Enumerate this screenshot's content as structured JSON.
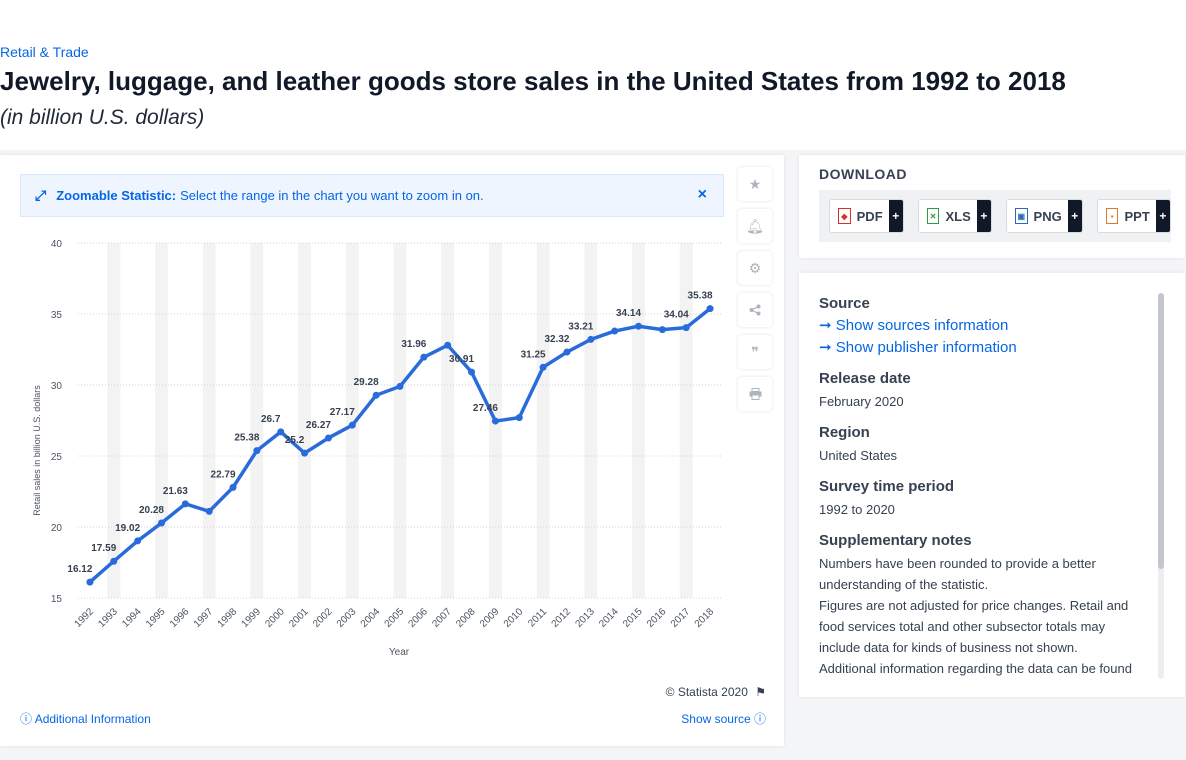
{
  "header": {
    "breadcrumb": "Retail & Trade",
    "title": "Jewelry, luggage, and leather goods store sales in the United States from 1992 to 2018",
    "subtitle": "(in billion U.S. dollars)"
  },
  "zoom_banner": {
    "icon": "expand-icon",
    "title": "Zoomable Statistic:",
    "text": "Select the range in the chart you want to zoom in on.",
    "close": "×"
  },
  "tools": [
    "star-icon",
    "bell-icon",
    "gear-icon",
    "share-icon",
    "quote-icon",
    "print-icon"
  ],
  "footer": {
    "copyright": "© Statista 2020",
    "additional_info": "Additional Information",
    "show_source": "Show source"
  },
  "download": {
    "title": "DOWNLOAD",
    "buttons": [
      {
        "label": "PDF",
        "color": "#d9302c"
      },
      {
        "label": "XLS",
        "color": "#2e9b48"
      },
      {
        "label": "PNG",
        "color": "#2b6cb0"
      },
      {
        "label": "PPT",
        "color": "#e0782b"
      }
    ],
    "plus": "+"
  },
  "info": {
    "source_heading": "Source",
    "show_sources": "Show sources information",
    "show_publisher": "Show publisher information",
    "release_heading": "Release date",
    "release_value": "February 2020",
    "region_heading": "Region",
    "region_value": "United States",
    "survey_heading": "Survey time period",
    "survey_value": "1992 to 2020",
    "notes_heading": "Supplementary notes",
    "notes_1": "Numbers have been rounded to provide a better understanding of the statistic.",
    "notes_2": "Figures are not adjusted for price changes. Retail and food services total and other subsector totals may include data for kinds of business not shown.",
    "notes_3": "Additional information regarding the data can be found"
  },
  "chart_data": {
    "type": "line",
    "xlabel": "Year",
    "ylabel": "Retail sales in billion U.S. dollars",
    "ylim": [
      15,
      40
    ],
    "yticks": [
      15,
      20,
      25,
      30,
      35,
      40
    ],
    "grid": true,
    "color": "#2a6bdb",
    "categories": [
      "1992",
      "1993",
      "1994",
      "1995",
      "1996",
      "1997",
      "1998",
      "1999",
      "2000",
      "2001",
      "2002",
      "2003",
      "2004",
      "2005",
      "2006",
      "2007",
      "2008",
      "2009",
      "2010",
      "2011",
      "2012",
      "2013",
      "2014",
      "2015",
      "2016",
      "2017",
      "2018"
    ],
    "values": [
      16.12,
      17.59,
      19.02,
      20.28,
      21.63,
      21.1,
      22.79,
      25.38,
      26.7,
      25.2,
      26.27,
      27.17,
      29.28,
      29.9,
      31.96,
      32.8,
      30.91,
      27.46,
      27.7,
      31.25,
      32.32,
      33.21,
      33.8,
      34.14,
      33.9,
      34.04,
      35.38
    ],
    "labels": [
      "16.12",
      "17.59",
      "19.02",
      "20.28",
      "21.63",
      "",
      "22.79",
      "25.38",
      "26.7",
      "25.2",
      "26.27",
      "27.17",
      "29.28",
      "",
      "31.96",
      "",
      "30.91",
      "27.46",
      "",
      "31.25",
      "32.32",
      "33.21",
      "",
      "34.14",
      "",
      "34.04",
      "35.38"
    ]
  }
}
